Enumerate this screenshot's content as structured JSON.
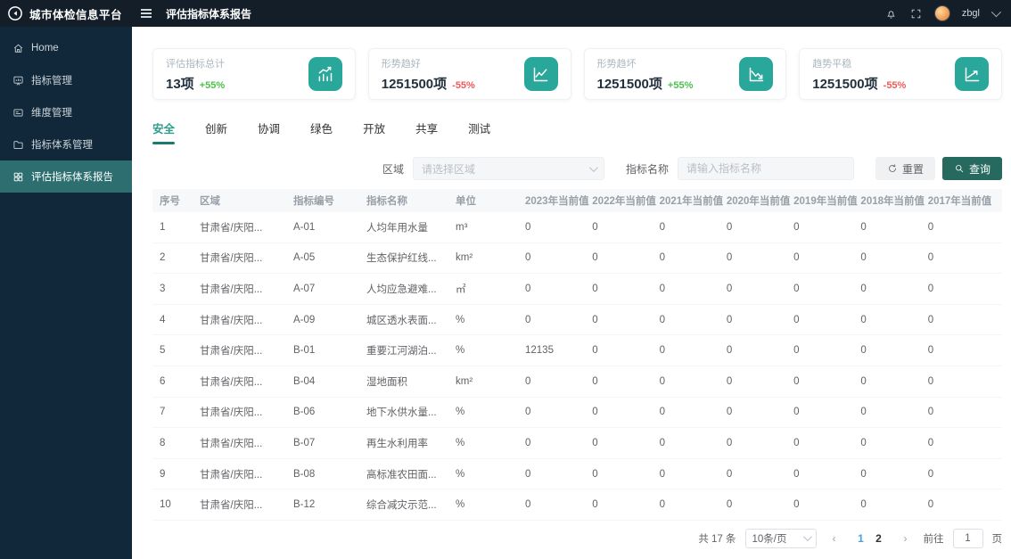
{
  "app": {
    "brand": "城市体检信息平台",
    "page_title": "评估指标体系报告",
    "username": "zbgl"
  },
  "sidebar": {
    "items": [
      {
        "key": "home",
        "label": "Home",
        "icon": "home-icon",
        "active": false
      },
      {
        "key": "indicator-mgmt",
        "label": "指标管理",
        "icon": "chart-board-icon",
        "active": false
      },
      {
        "key": "dimension-mgmt",
        "label": "维度管理",
        "icon": "card-icon",
        "active": false
      },
      {
        "key": "indicator-system-mgmt",
        "label": "指标体系管理",
        "icon": "folder-icon",
        "active": false
      },
      {
        "key": "evaluation-report",
        "label": "评估指标体系报告",
        "icon": "grid-icon",
        "active": true
      }
    ]
  },
  "cards": [
    {
      "label": "评估指标总计",
      "value": "13项",
      "delta": "+55%",
      "delta_color": "#4cc14c",
      "icon": "bar-chart-up-icon"
    },
    {
      "label": "形势趋好",
      "value": "1251500项",
      "delta": "-55%",
      "delta_color": "#f05a5a",
      "icon": "line-chart-up-icon"
    },
    {
      "label": "形势趋坏",
      "value": "1251500项",
      "delta": "+55%",
      "delta_color": "#4cc14c",
      "icon": "line-chart-down-icon"
    },
    {
      "label": "趋势平稳",
      "value": "1251500项",
      "delta": "-55%",
      "delta_color": "#f05a5a",
      "icon": "trend-line-icon"
    }
  ],
  "tabs": {
    "active_index": 0,
    "items": [
      "安全",
      "创新",
      "协调",
      "绿色",
      "开放",
      "共享",
      "测试"
    ]
  },
  "filters": {
    "region_label": "区域",
    "region_placeholder": "请选择区域",
    "name_label": "指标名称",
    "name_placeholder": "请输入指标名称",
    "reset_label": "重置",
    "search_label": "查询"
  },
  "table": {
    "headers": [
      "序号",
      "区域",
      "指标编号",
      "指标名称",
      "单位",
      "2023年当前值",
      "2022年当前值",
      "2021年当前值",
      "2020年当前值",
      "2019年当前值",
      "2018年当前值",
      "2017年当前值"
    ],
    "rows": [
      [
        "1",
        "甘肃省/庆阳...",
        "A-01",
        "人均年用水量",
        "m³",
        "0",
        "0",
        "0",
        "0",
        "0",
        "0",
        "0"
      ],
      [
        "2",
        "甘肃省/庆阳...",
        "A-05",
        "生态保护红线...",
        "km²",
        "0",
        "0",
        "0",
        "0",
        "0",
        "0",
        "0"
      ],
      [
        "3",
        "甘肃省/庆阳...",
        "A-07",
        "人均应急避难...",
        "㎡",
        "0",
        "0",
        "0",
        "0",
        "0",
        "0",
        "0"
      ],
      [
        "4",
        "甘肃省/庆阳...",
        "A-09",
        "城区透水表面...",
        "%",
        "0",
        "0",
        "0",
        "0",
        "0",
        "0",
        "0"
      ],
      [
        "5",
        "甘肃省/庆阳...",
        "B-01",
        "重要江河湖泊...",
        "%",
        "12135",
        "0",
        "0",
        "0",
        "0",
        "0",
        "0"
      ],
      [
        "6",
        "甘肃省/庆阳...",
        "B-04",
        "湿地面积",
        "km²",
        "0",
        "0",
        "0",
        "0",
        "0",
        "0",
        "0"
      ],
      [
        "7",
        "甘肃省/庆阳...",
        "B-06",
        "地下水供水量...",
        "%",
        "0",
        "0",
        "0",
        "0",
        "0",
        "0",
        "0"
      ],
      [
        "8",
        "甘肃省/庆阳...",
        "B-07",
        "再生水利用率",
        "%",
        "0",
        "0",
        "0",
        "0",
        "0",
        "0",
        "0"
      ],
      [
        "9",
        "甘肃省/庆阳...",
        "B-08",
        "高标准农田面...",
        "%",
        "0",
        "0",
        "0",
        "0",
        "0",
        "0",
        "0"
      ],
      [
        "10",
        "甘肃省/庆阳...",
        "B-12",
        "综合减灾示范...",
        "%",
        "0",
        "0",
        "0",
        "0",
        "0",
        "0",
        "0"
      ]
    ]
  },
  "pagination": {
    "total_label": "共 17 条",
    "page_size": "10条/页",
    "pages": [
      "1",
      "2"
    ],
    "active_page": "1",
    "prev_label": "‹",
    "next_label": "›",
    "goto_label": "前往",
    "goto_value": "1",
    "goto_suffix": "页"
  },
  "colors": {
    "topbar_bg": "#131e29",
    "sidebar_bg": "#10283a",
    "sidebar_active_bg": "#2d6e70",
    "accent_teal": "#29a79b",
    "search_button_bg": "#26695e",
    "tab_active": "#2f9c8c",
    "delta_up": "#4cc14c",
    "delta_down": "#f05a5a",
    "pagination_active": "#47a3d9"
  }
}
